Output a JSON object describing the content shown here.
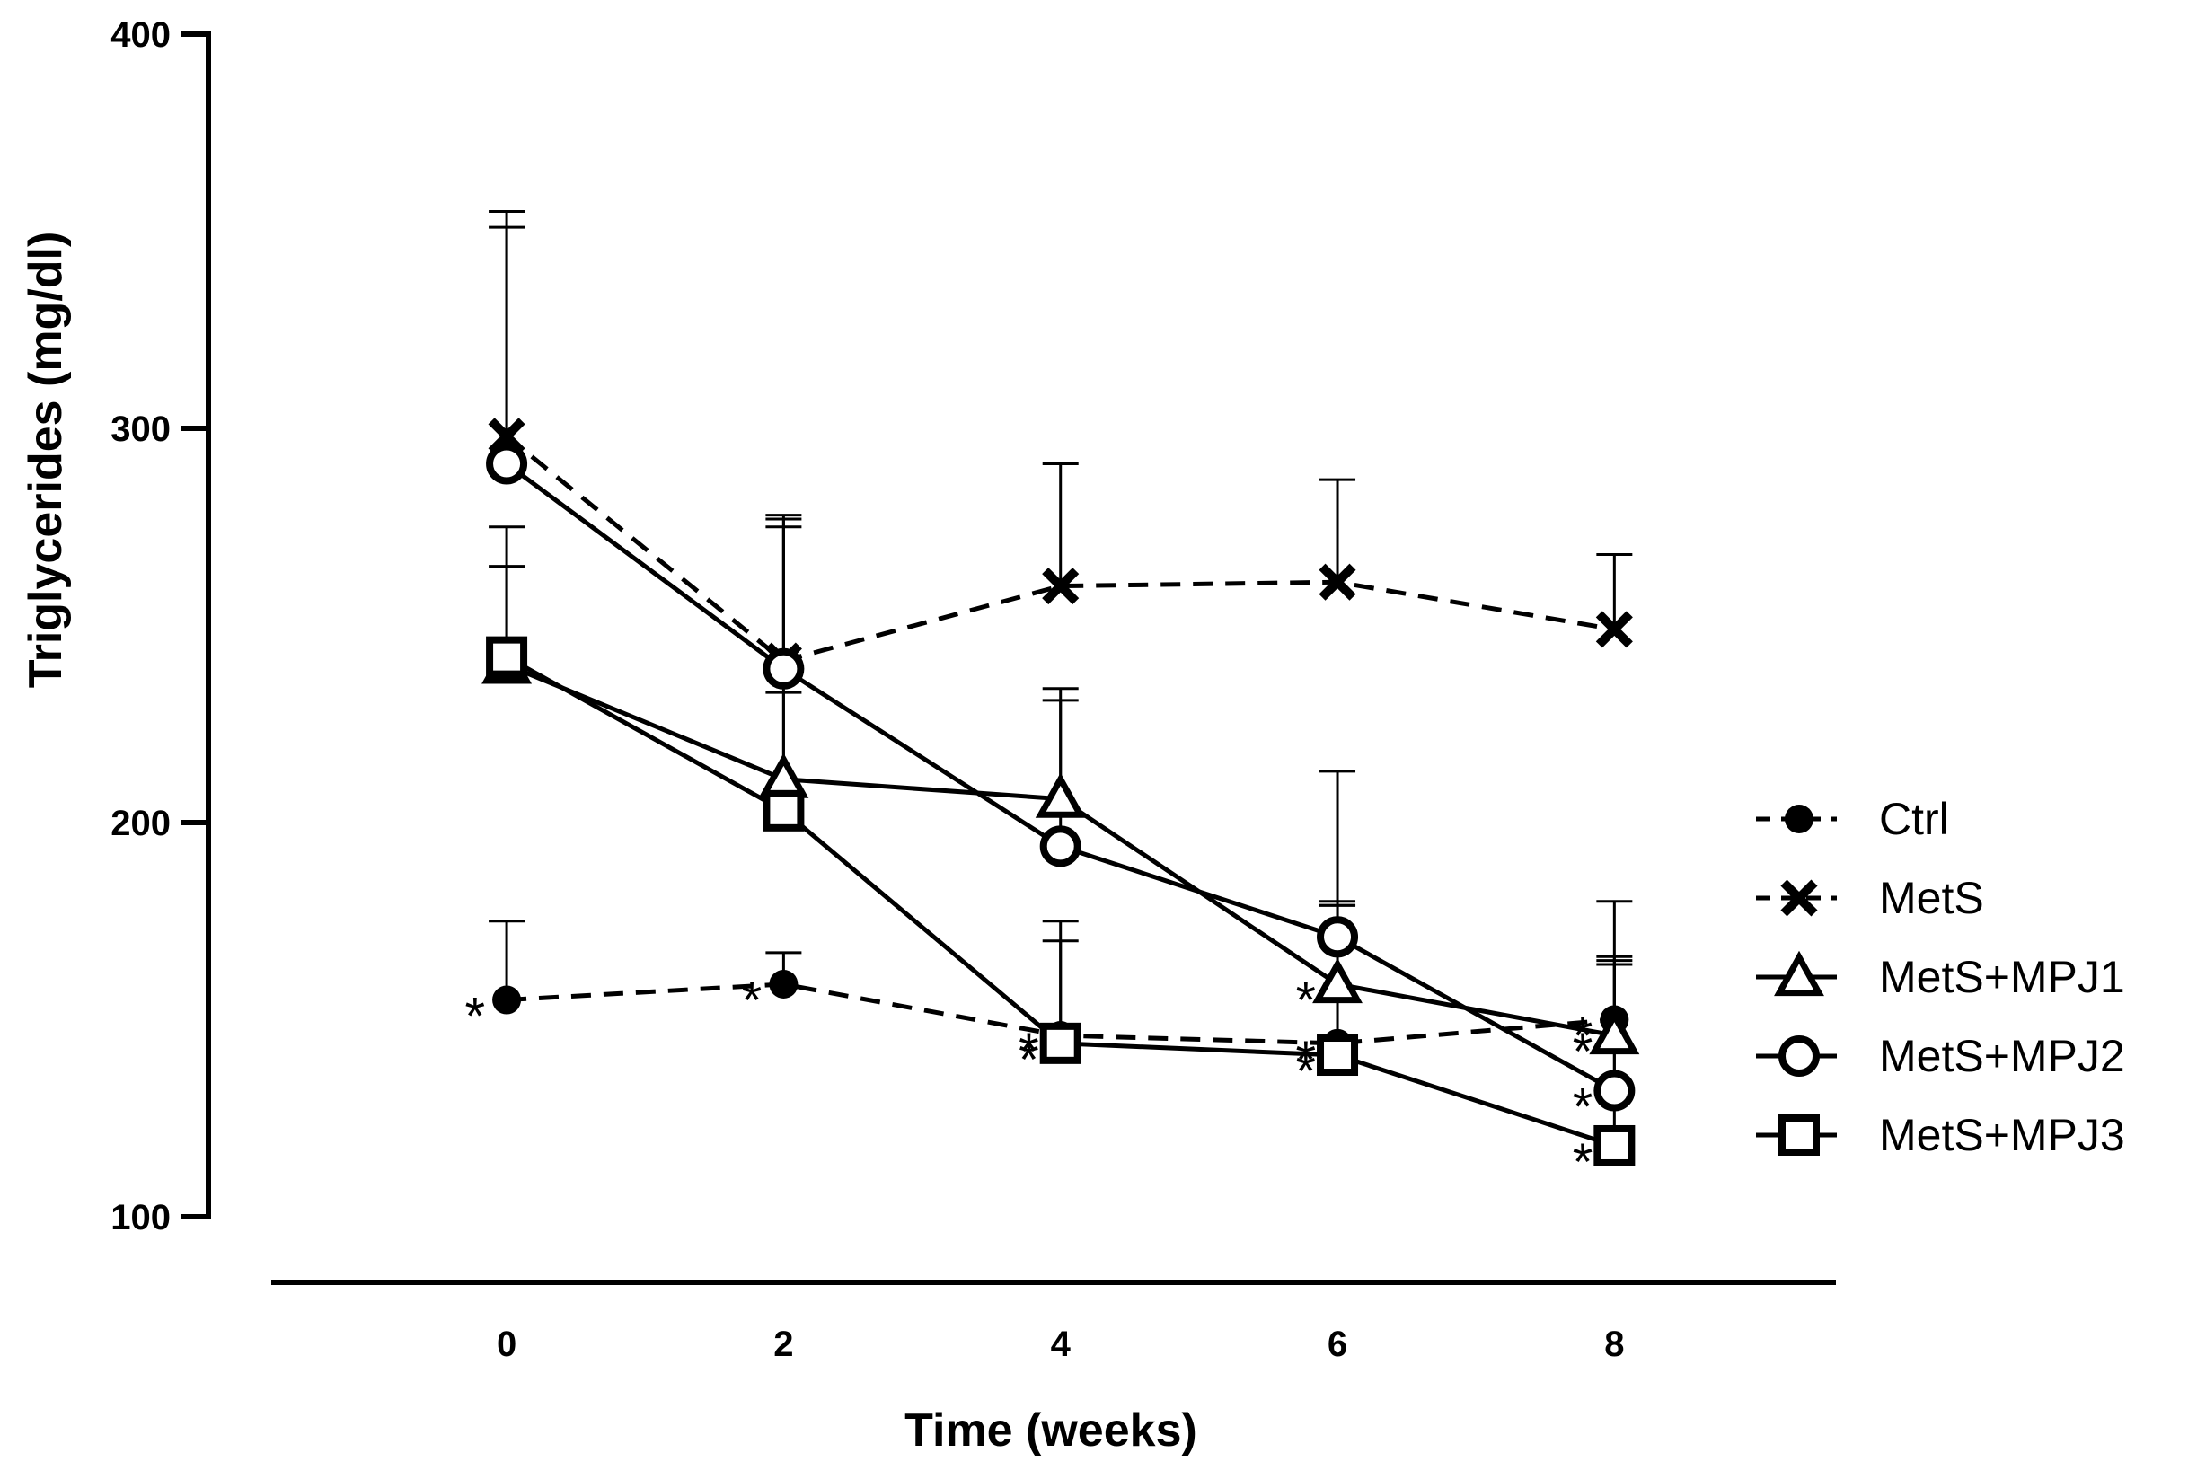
{
  "chart_data": {
    "type": "line",
    "title": "",
    "xlabel": "Time (weeks)",
    "ylabel": "Triglycerides (mg/dl)",
    "x": [
      0,
      2,
      4,
      6,
      8
    ],
    "x_tick_labels": [
      "0",
      "2",
      "4",
      "6",
      "8"
    ],
    "xlim": [
      -1.7,
      9.6
    ],
    "ylim": [
      100,
      400
    ],
    "y_ticks": [
      100,
      200,
      300,
      400
    ],
    "y_tick_labels": [
      "100",
      "200",
      "300",
      "400"
    ],
    "grid": false,
    "legend_position": "right",
    "significance_marker": "*",
    "series": [
      {
        "name": "Ctrl",
        "marker": "filled-circle",
        "line_style": "dashed",
        "values": [
          155,
          159,
          146,
          144,
          150
        ],
        "error_upper": [
          175,
          167,
          170,
          180,
          166
        ],
        "significance": [
          true,
          true,
          true,
          true,
          true
        ]
      },
      {
        "name": "MetS",
        "marker": "x",
        "line_style": "dashed",
        "values": [
          298,
          241,
          260,
          261,
          249
        ],
        "error_upper": [
          355,
          277,
          291,
          287,
          268
        ],
        "significance": [
          false,
          false,
          false,
          false,
          false
        ]
      },
      {
        "name": "MetS+MPJ1",
        "marker": "open-triangle",
        "line_style": "solid",
        "values": [
          240,
          211,
          206,
          159,
          146
        ],
        "error_upper": [
          275,
          278,
          234,
          179,
          180
        ],
        "significance": [
          false,
          false,
          false,
          true,
          true
        ]
      },
      {
        "name": "MetS+MPJ2",
        "marker": "open-circle",
        "line_style": "solid",
        "values": [
          291,
          239,
          194,
          171,
          132
        ],
        "error_upper": [
          351,
          275,
          231,
          213,
          165
        ],
        "significance": [
          false,
          false,
          false,
          false,
          true
        ]
      },
      {
        "name": "MetS+MPJ3",
        "marker": "open-square",
        "line_style": "solid",
        "values": [
          242,
          203,
          144,
          141,
          118
        ],
        "error_upper": [
          265,
          233,
          175,
          179,
          164
        ],
        "significance": [
          false,
          false,
          true,
          true,
          true
        ]
      }
    ]
  }
}
